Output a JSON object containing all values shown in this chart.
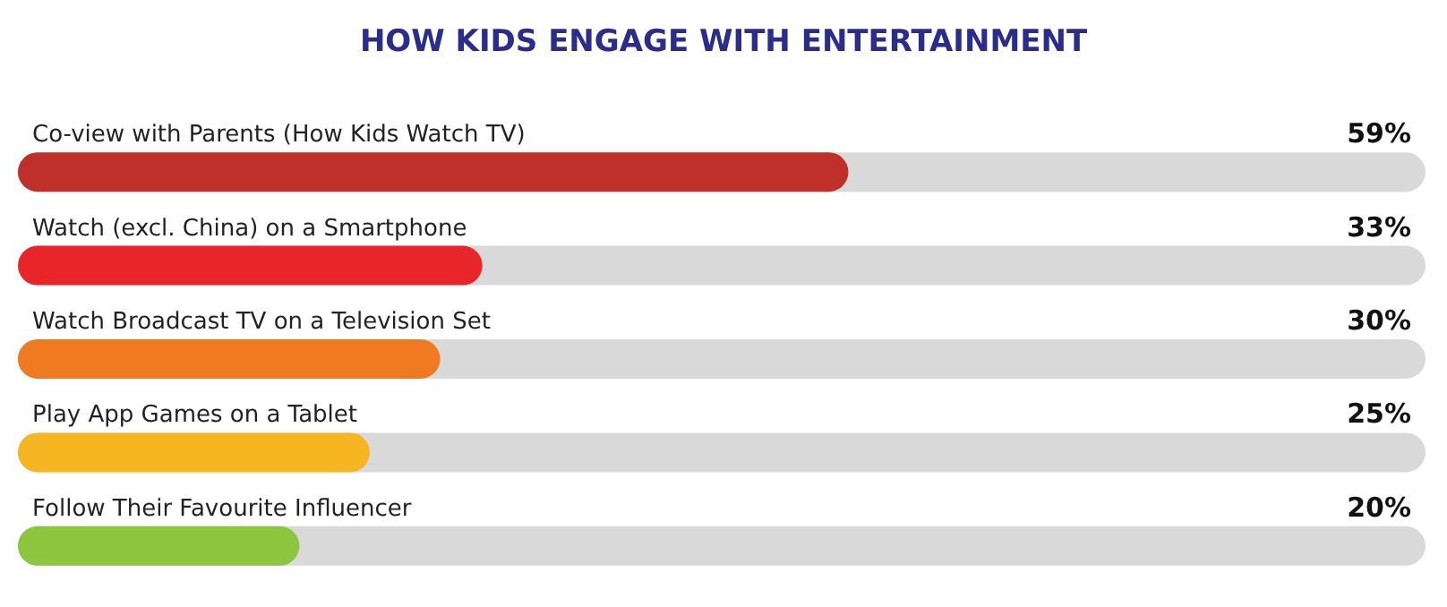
{
  "chart_data": {
    "type": "bar",
    "orientation": "horizontal",
    "title": "HOW KIDS ENGAGE WITH ENTERTAINMENT",
    "categories": [
      "Co-view with Parents (How Kids Watch TV)",
      "Watch (excl. China) on a Smartphone",
      "Watch Broadcast TV on a Television Set",
      "Play App Games on a Tablet",
      "Follow Their Favourite Influencer"
    ],
    "values": [
      59,
      33,
      30,
      25,
      20
    ],
    "value_labels": [
      "59%",
      "33%",
      "30%",
      "25%",
      "20%"
    ],
    "colors": [
      "#c0302a",
      "#e8262a",
      "#f07a22",
      "#f5b621",
      "#8cc63f"
    ],
    "xlim": [
      0,
      100
    ],
    "tick_labels": false,
    "grid": false
  }
}
